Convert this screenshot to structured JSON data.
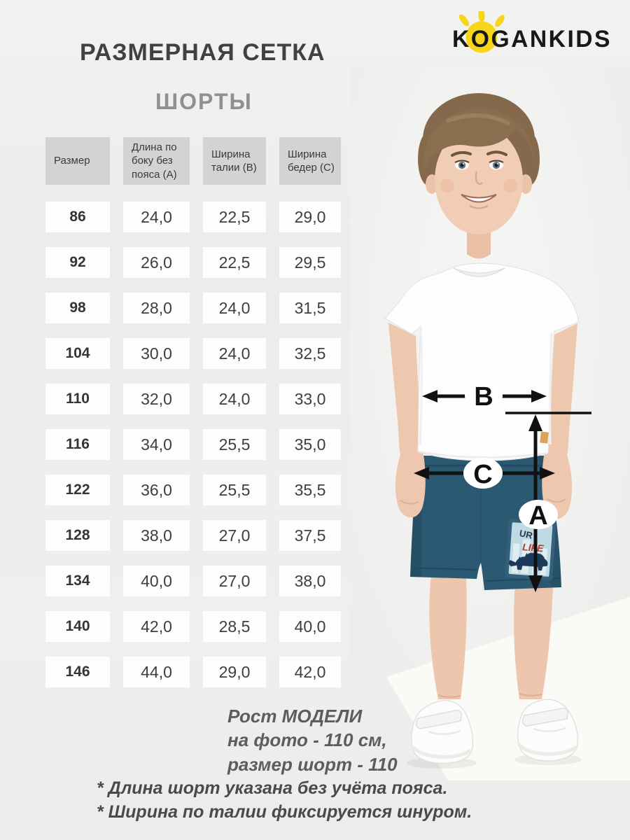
{
  "page": {
    "title": "РАЗМЕРНАЯ СЕТКА",
    "subtitle": "ШОРТЫ",
    "brand": "KOGANKIDS"
  },
  "table": {
    "headers": [
      "Размер",
      "Длина по боку без пояса (А)",
      "Ширина талии (В)",
      "Ширина бедер (С)"
    ],
    "rows": [
      {
        "size": "86",
        "values": [
          "24,0",
          "22,5",
          "29,0"
        ]
      },
      {
        "size": "92",
        "values": [
          "26,0",
          "22,5",
          "29,5"
        ]
      },
      {
        "size": "98",
        "values": [
          "28,0",
          "24,0",
          "31,5"
        ]
      },
      {
        "size": "104",
        "values": [
          "30,0",
          "24,0",
          "32,5"
        ]
      },
      {
        "size": "110",
        "values": [
          "32,0",
          "24,0",
          "33,0"
        ]
      },
      {
        "size": "116",
        "values": [
          "34,0",
          "25,5",
          "35,0"
        ]
      },
      {
        "size": "122",
        "values": [
          "36,0",
          "25,5",
          "35,5"
        ]
      },
      {
        "size": "128",
        "values": [
          "38,0",
          "27,0",
          "37,5"
        ]
      },
      {
        "size": "134",
        "values": [
          "40,0",
          "27,0",
          "38,0"
        ]
      },
      {
        "size": "140",
        "values": [
          "42,0",
          "28,5",
          "40,0"
        ]
      },
      {
        "size": "146",
        "values": [
          "44,0",
          "29,0",
          "42,0"
        ]
      }
    ]
  },
  "figure": {
    "labels": {
      "waist": "B",
      "hips": "C",
      "length": "A"
    },
    "patch": {
      "line1": "UR",
      "line2": "LIFE"
    }
  },
  "model_info": {
    "lines": [
      "Рост МОДЕЛИ",
      "на фото - 110 см,",
      "размер шорт - 110"
    ]
  },
  "footnotes": [
    "* Длина шорт указана без учёта пояса.",
    "* Ширина по талии фиксируется шнуром."
  ],
  "colors": {
    "accent_yellow": "#f6d51b",
    "shorts_teal": "#2b5971",
    "patch_red": "#c0392b",
    "header_gray": "#d2d3d2",
    "page_bg": "#eeefee"
  }
}
